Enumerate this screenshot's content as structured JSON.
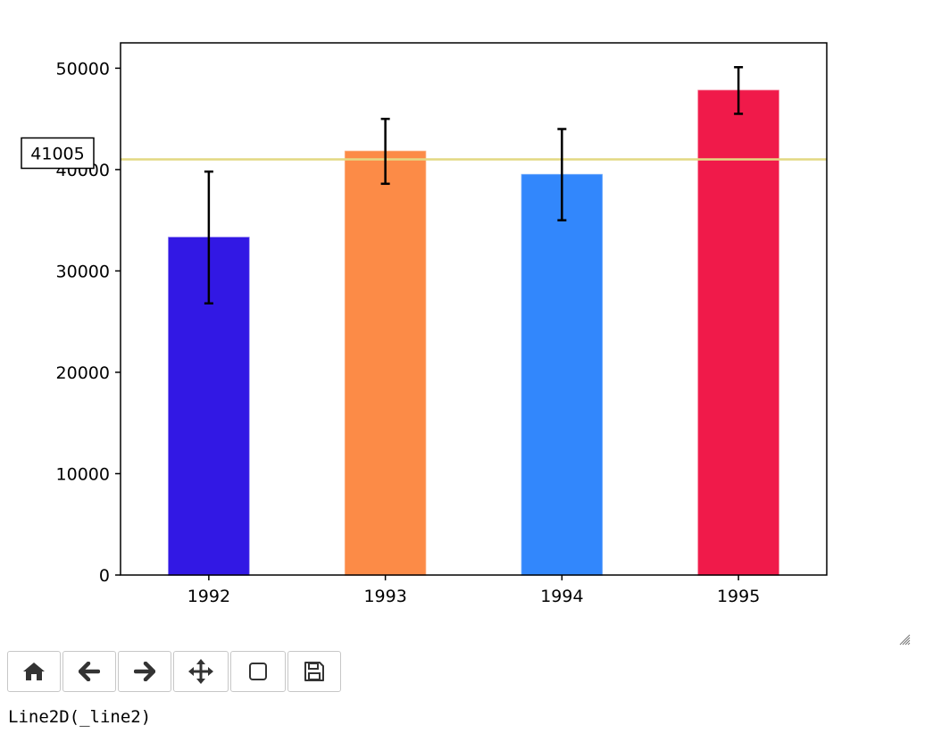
{
  "chart_data": {
    "type": "bar",
    "title": "",
    "xlabel": "",
    "ylabel": "",
    "categories": [
      "1992",
      "1993",
      "1994",
      "1995"
    ],
    "values": [
      33300,
      41800,
      39500,
      47800
    ],
    "errors": [
      6500,
      3200,
      4500,
      2300
    ],
    "bar_colors": [
      "#3218e4",
      "#fc8b47",
      "#3287fc",
      "#f01a4a"
    ],
    "ylim": [
      0,
      52500
    ],
    "yticks": [
      0,
      10000,
      20000,
      30000,
      40000,
      50000
    ],
    "ytick_labels": [
      "0",
      "10000",
      "20000",
      "30000",
      "40000",
      "50000"
    ],
    "reference_line": {
      "value": 41005,
      "label": "41005",
      "color": "#e3d882"
    },
    "grid": false
  },
  "toolbar": {
    "buttons": [
      {
        "name": "home-button",
        "icon": "home-icon"
      },
      {
        "name": "back-button",
        "icon": "arrow-left-icon"
      },
      {
        "name": "forward-button",
        "icon": "arrow-right-icon"
      },
      {
        "name": "pan-button",
        "icon": "move-icon"
      },
      {
        "name": "zoom-button",
        "icon": "zoom-rect-icon"
      },
      {
        "name": "save-button",
        "icon": "save-icon"
      }
    ]
  },
  "status": {
    "text": "Line2D(_line2)"
  }
}
